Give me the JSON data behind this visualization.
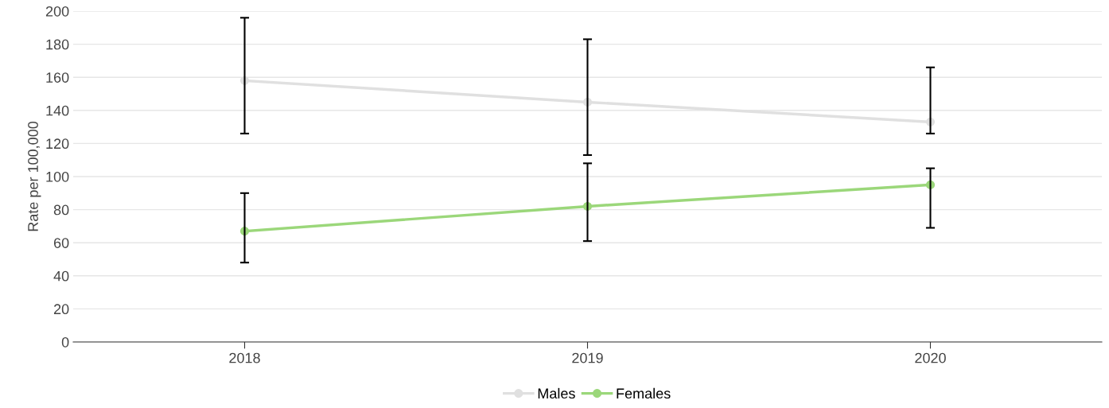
{
  "chart_data": {
    "type": "line",
    "ylabel": "Rate per 100,000",
    "categories": [
      "2018",
      "2019",
      "2020"
    ],
    "series": [
      {
        "name": "Males",
        "color": "#e0e0e0",
        "values": [
          158,
          145,
          133
        ],
        "errors": [
          [
            126,
            196
          ],
          [
            113,
            183
          ],
          [
            126,
            166
          ]
        ]
      },
      {
        "name": "Females",
        "color": "#9bd77a",
        "values": [
          67,
          82,
          95
        ],
        "errors": [
          [
            48,
            90
          ],
          [
            61,
            108
          ],
          [
            69,
            105
          ]
        ]
      }
    ],
    "ylim": [
      0,
      200
    ],
    "yticks": [
      0,
      20,
      40,
      60,
      80,
      100,
      120,
      140,
      160,
      180,
      200
    ],
    "grid": "y",
    "legend": "bottom",
    "marker": "circle",
    "line_style": "solid"
  }
}
